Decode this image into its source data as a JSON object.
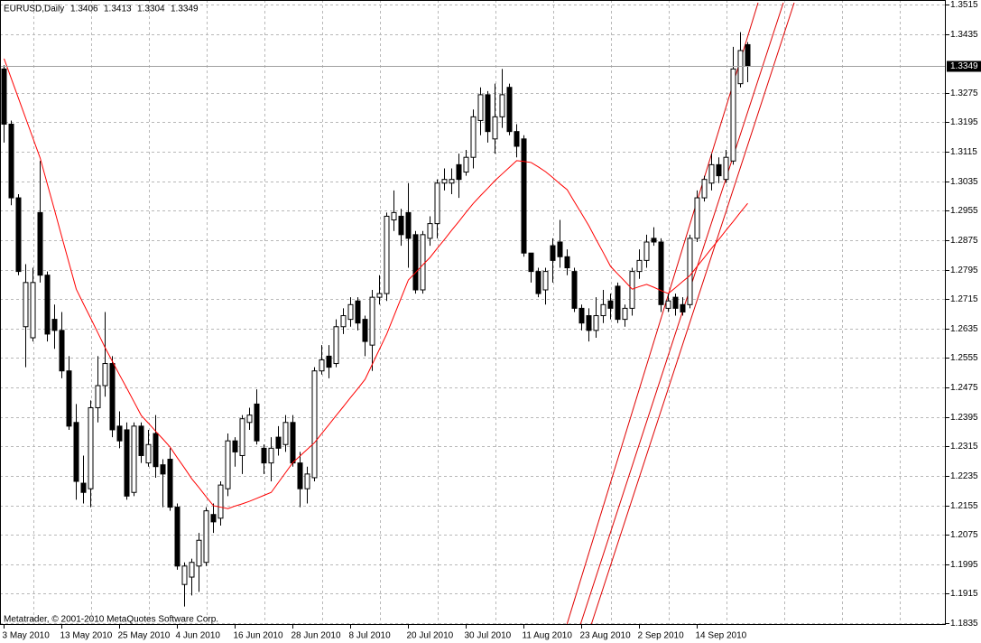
{
  "chart_data": {
    "type": "candlestick",
    "title": "EURUSD,Daily",
    "annotation": "Metatrader, © 2001-2010 MetaQuotes Software Corp.",
    "categories": [
      "3 May 2010",
      null,
      null,
      null,
      null,
      null,
      null,
      null,
      "13 May 2010",
      null,
      null,
      null,
      null,
      null,
      null,
      null,
      "25 May 2010",
      null,
      null,
      null,
      null,
      null,
      null,
      null,
      "4 Jun 2010",
      null,
      null,
      null,
      null,
      null,
      null,
      null,
      "16 Jun 2010",
      null,
      null,
      null,
      null,
      null,
      null,
      null,
      "28 Jun 2010",
      null,
      null,
      null,
      null,
      null,
      null,
      null,
      "8 Jul 2010",
      null,
      null,
      null,
      null,
      null,
      null,
      null,
      "20 Jul 2010",
      null,
      null,
      null,
      null,
      null,
      null,
      null,
      "30 Jul 2010",
      null,
      null,
      null,
      null,
      null,
      null,
      null,
      "11 Aug 2010",
      null,
      null,
      null,
      null,
      null,
      null,
      null,
      "23 Aug 2010",
      null,
      null,
      null,
      null,
      null,
      null,
      null,
      "2 Sep 2010",
      null,
      null,
      null,
      null,
      null,
      null,
      null,
      "14 Sep 2010",
      null,
      null,
      null,
      null,
      null,
      null,
      null
    ],
    "open": [
      1.334,
      1.319,
      1.299,
      1.264,
      1.261,
      1.295,
      1.278,
      1.266,
      1.263,
      1.252,
      1.238,
      1.2215,
      1.22,
      1.242,
      1.248,
      1.254,
      1.237,
      1.236,
      1.219,
      1.237,
      1.227,
      1.235,
      1.2265,
      1.228,
      1.215,
      1.194,
      1.196,
      1.199,
      1.2,
      1.213,
      1.212,
      1.22,
      1.233,
      1.229,
      1.238,
      1.243,
      1.231,
      1.227,
      1.234,
      1.232,
      1.238,
      1.227,
      1.22,
      1.223,
      1.252,
      1.256,
      1.254,
      1.264,
      1.266,
      1.271,
      1.266,
      1.259,
      1.272,
      1.273,
      1.293,
      1.294,
      1.295,
      1.289,
      1.274,
      1.288,
      1.292,
      1.303,
      1.303,
      1.308,
      1.306,
      1.31,
      1.32,
      1.327,
      1.315,
      1.321,
      1.329,
      1.317,
      1.315,
      1.284,
      1.279,
      1.274,
      1.286,
      1.287,
      1.283,
      1.279,
      1.269,
      1.267,
      1.263,
      1.267,
      1.271,
      1.275,
      1.266,
      1.269,
      1.279,
      1.282,
      1.288,
      1.287,
      1.269,
      1.272,
      1.27,
      1.27,
      1.288,
      1.299,
      1.303,
      1.308,
      1.304,
      1.309,
      1.33,
      1.3406
    ],
    "high": [
      1.335,
      1.32,
      1.3,
      1.281,
      1.28,
      1.309,
      1.279,
      1.27,
      1.268,
      1.256,
      1.243,
      1.229,
      1.244,
      1.256,
      1.268,
      1.256,
      1.241,
      1.238,
      1.238,
      1.238,
      1.236,
      1.24,
      1.228,
      1.231,
      1.216,
      1.2,
      1.201,
      1.208,
      1.215,
      1.216,
      1.222,
      1.235,
      1.234,
      1.24,
      1.242,
      1.247,
      1.232,
      1.234,
      1.237,
      1.24,
      1.24,
      1.23,
      1.226,
      1.253,
      1.259,
      1.259,
      1.266,
      1.269,
      1.272,
      1.272,
      1.267,
      1.274,
      1.278,
      1.295,
      1.301,
      1.296,
      1.303,
      1.29,
      1.29,
      1.294,
      1.304,
      1.307,
      1.307,
      1.311,
      1.312,
      1.323,
      1.329,
      1.328,
      1.33,
      1.334,
      1.33,
      1.319,
      1.316,
      1.284,
      1.28,
      1.28,
      1.288,
      1.293,
      1.285,
      1.28,
      1.27,
      1.269,
      1.272,
      1.274,
      1.273,
      1.276,
      1.27,
      1.28,
      1.285,
      1.289,
      1.291,
      1.288,
      1.273,
      1.273,
      1.272,
      1.289,
      1.301,
      1.305,
      1.311,
      1.31,
      1.312,
      1.34,
      1.344,
      1.3413
    ],
    "low": [
      1.314,
      1.297,
      1.278,
      1.253,
      1.26,
      1.276,
      1.26,
      1.258,
      1.25,
      1.236,
      1.217,
      1.216,
      1.215,
      1.238,
      1.245,
      1.234,
      1.231,
      1.217,
      1.218,
      1.227,
      1.226,
      1.223,
      1.215,
      1.214,
      1.198,
      1.188,
      1.191,
      1.192,
      1.199,
      1.208,
      1.21,
      1.218,
      1.226,
      1.224,
      1.236,
      1.232,
      1.224,
      1.222,
      1.229,
      1.23,
      1.226,
      1.215,
      1.216,
      1.222,
      1.251,
      1.25,
      1.253,
      1.262,
      1.264,
      1.263,
      1.256,
      1.252,
      1.27,
      1.271,
      1.29,
      1.286,
      1.28,
      1.273,
      1.273,
      1.286,
      1.288,
      1.301,
      1.3,
      1.299,
      1.305,
      1.307,
      1.316,
      1.314,
      1.311,
      1.318,
      1.316,
      1.31,
      1.283,
      1.276,
      1.272,
      1.27,
      1.276,
      1.28,
      1.278,
      1.268,
      1.263,
      1.26,
      1.261,
      1.265,
      1.266,
      1.265,
      1.264,
      1.267,
      1.277,
      1.28,
      1.286,
      1.268,
      1.268,
      1.267,
      1.267,
      1.269,
      1.287,
      1.298,
      1.301,
      1.303,
      1.303,
      1.308,
      1.329,
      1.3304
    ],
    "close": [
      1.319,
      1.299,
      1.279,
      1.276,
      1.276,
      1.278,
      1.262,
      1.263,
      1.252,
      1.237,
      1.222,
      1.219,
      1.242,
      1.248,
      1.254,
      1.236,
      1.233,
      1.218,
      1.237,
      1.229,
      1.232,
      1.226,
      1.224,
      1.215,
      1.199,
      1.199,
      1.2,
      1.206,
      1.214,
      1.211,
      1.221,
      1.233,
      1.23,
      1.239,
      1.24,
      1.233,
      1.227,
      1.231,
      1.231,
      1.238,
      1.227,
      1.22,
      1.224,
      1.252,
      1.255,
      1.253,
      1.264,
      1.267,
      1.27,
      1.265,
      1.26,
      1.272,
      1.273,
      1.294,
      1.295,
      1.289,
      1.288,
      1.274,
      1.289,
      1.292,
      1.303,
      1.304,
      1.304,
      1.304,
      1.31,
      1.321,
      1.327,
      1.317,
      1.321,
      1.327,
      1.317,
      1.313,
      1.284,
      1.279,
      1.273,
      1.279,
      1.282,
      1.283,
      1.28,
      1.269,
      1.265,
      1.263,
      1.267,
      1.27,
      1.269,
      1.266,
      1.269,
      1.279,
      1.282,
      1.287,
      1.287,
      1.27,
      1.271,
      1.269,
      1.268,
      1.288,
      1.299,
      1.304,
      1.308,
      1.305,
      1.31,
      1.334,
      1.339,
      1.3349
    ],
    "ma_values": [
      1.3368,
      1.3314,
      1.326,
      1.3206,
      1.3152,
      1.3098,
      1.3027,
      1.2956,
      1.2884,
      1.2813,
      1.2742,
      1.2702,
      1.2663,
      1.2623,
      1.2583,
      1.2546,
      1.2509,
      1.2473,
      1.2436,
      1.2399,
      1.2378,
      1.2356,
      1.2335,
      1.2313,
      1.2284,
      1.2256,
      1.2227,
      1.2203,
      1.2178,
      1.2154,
      1.215,
      1.2146,
      1.2153,
      1.2159,
      1.2166,
      1.2174,
      1.2182,
      1.219,
      1.2217,
      1.2244,
      1.2271,
      1.2289,
      1.2307,
      1.2325,
      1.235,
      1.2374,
      1.2399,
      1.2423,
      1.2448,
      1.2472,
      1.2497,
      1.2538,
      1.2579,
      1.262,
      1.2669,
      1.2718,
      1.2767,
      1.2787,
      1.2808,
      1.2828,
      1.2853,
      1.2877,
      1.2902,
      1.2926,
      1.2951,
      1.2975,
      1.2996,
      1.3016,
      1.3037,
      1.3055,
      1.3073,
      1.3091,
      1.3089,
      1.3086,
      1.3074,
      1.3061,
      1.3045,
      1.3028,
      1.3012,
      1.2979,
      1.2947,
      1.2914,
      1.2877,
      1.2841,
      1.2804,
      1.2783,
      1.2763,
      1.2742,
      1.2749,
      1.2755,
      1.2747,
      1.2738,
      1.273,
      1.2746,
      1.2763,
      1.2779,
      1.2804,
      1.2828,
      1.2853,
      1.2877,
      1.2902,
      1.2926,
      1.2951,
      1.2975
    ],
    "ma_color": "#ff0000",
    "up_color": "#ffffff",
    "down_color": "#000000",
    "ylim": [
      1.1835,
      1.3515
    ],
    "yticks": [
      1.3515,
      1.3435,
      1.3275,
      1.3195,
      1.3115,
      1.3035,
      1.2955,
      1.2875,
      1.2795,
      1.2715,
      1.2635,
      1.2555,
      1.2475,
      1.2395,
      1.2315,
      1.2235,
      1.2155,
      1.2075,
      1.1995,
      1.1915,
      1.1835
    ],
    "grid": true
  }
}
